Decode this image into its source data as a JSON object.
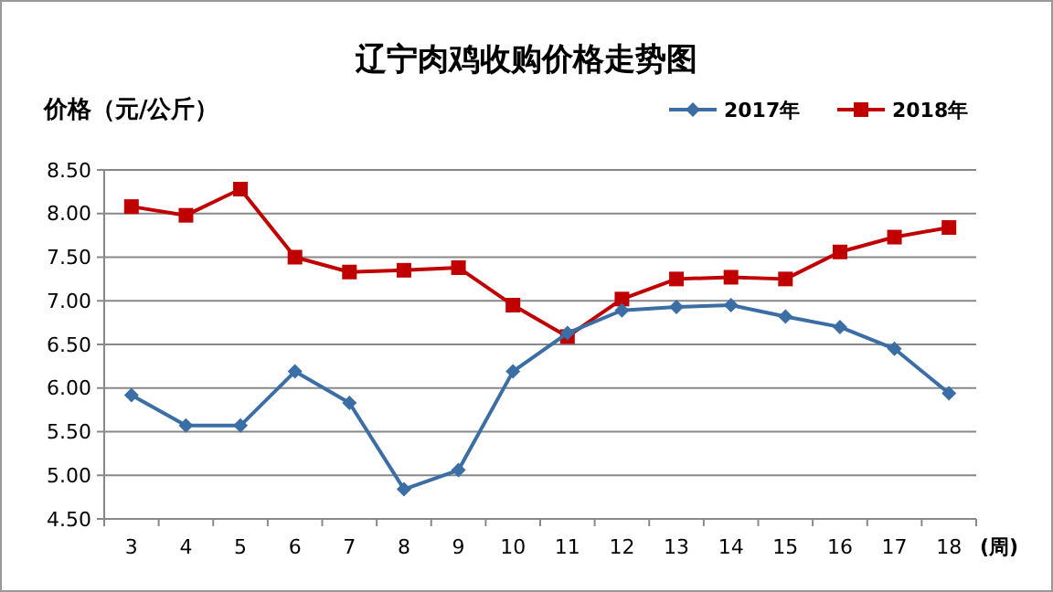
{
  "chart_data": {
    "type": "line",
    "title": "辽宁肉鸡收购价格走势图",
    "ylabel": "价格（元/公斤）",
    "xlabel": "(周)",
    "categories": [
      "3",
      "4",
      "5",
      "6",
      "7",
      "8",
      "9",
      "10",
      "11",
      "12",
      "13",
      "14",
      "15",
      "16",
      "17",
      "18"
    ],
    "series": [
      {
        "name": "2017年",
        "color": "#3a6ea5",
        "marker": "diamond",
        "values": [
          5.92,
          5.57,
          5.57,
          6.19,
          5.83,
          4.84,
          5.06,
          6.19,
          6.63,
          6.89,
          6.93,
          6.95,
          6.82,
          6.7,
          6.45,
          5.94
        ]
      },
      {
        "name": "2018年",
        "color": "#c00000",
        "marker": "square",
        "values": [
          8.08,
          7.98,
          8.28,
          7.5,
          7.33,
          7.35,
          7.38,
          6.95,
          6.59,
          7.02,
          7.25,
          7.27,
          7.25,
          7.56,
          7.73,
          7.84
        ]
      }
    ],
    "ylim": [
      4.5,
      8.5
    ],
    "yticks": [
      {
        "value": 4.5,
        "label": "4.50"
      },
      {
        "value": 5,
        "label": "5.00"
      },
      {
        "value": 5.5,
        "label": "5.50"
      },
      {
        "value": 6,
        "label": "6.00"
      },
      {
        "value": 6.5,
        "label": "6.50"
      },
      {
        "value": 7,
        "label": "7.00"
      },
      {
        "value": 7.5,
        "label": "7.50"
      },
      {
        "value": 8,
        "label": "8.00"
      },
      {
        "value": 8.5,
        "label": "8.50"
      }
    ],
    "grid": "y",
    "legend": "top right",
    "line_style": "solid"
  }
}
